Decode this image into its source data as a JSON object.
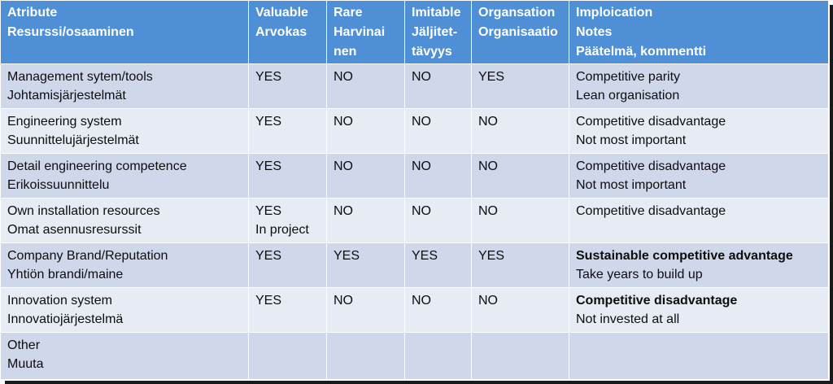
{
  "header": {
    "attribute": [
      "Atribute",
      "Resurssi/osaaminen"
    ],
    "valuable": [
      "Valuable",
      "Arvokas"
    ],
    "rare": [
      "Rare",
      "Harvinai",
      "nen"
    ],
    "imitable": [
      "Imitable",
      "Jäljitet-",
      "tävyys"
    ],
    "organisation": [
      "Organsation",
      "Organisaatio"
    ],
    "implication": [
      "Imploication",
      "Notes",
      "Päätelmä, kommentti"
    ]
  },
  "rows": [
    {
      "attribute": [
        "Management sytem/tools",
        "Johtamisjärjestelmät"
      ],
      "valuable": [
        "YES"
      ],
      "rare": "NO",
      "imitable": "NO",
      "organisation": "YES",
      "notes": [
        "Competitive  parity",
        "Lean organisation"
      ],
      "notes_bold_first": false
    },
    {
      "attribute": [
        "Engineering system",
        "Suunnittelujärjestelmät"
      ],
      "valuable": [
        "YES"
      ],
      "rare": "NO",
      "imitable": "NO",
      "organisation": "NO",
      "notes": [
        "Competitive disadvantage",
        "Not most important"
      ],
      "notes_bold_first": false
    },
    {
      "attribute": [
        "Detail engineering competence",
        "Erikoissuunnittelu"
      ],
      "valuable": [
        "YES"
      ],
      "rare": "NO",
      "imitable": "NO",
      "organisation": "NO",
      "notes": [
        "Competitive disadvantage",
        "Not most important"
      ],
      "notes_bold_first": false
    },
    {
      "attribute": [
        "Own installation resources",
        "Omat asennusresurssit"
      ],
      "valuable": [
        "YES",
        "In project"
      ],
      "rare": "NO",
      "imitable": "NO",
      "organisation": "NO",
      "notes": [
        "Competitive disadvantage",
        ""
      ],
      "notes_bold_first": false
    },
    {
      "attribute": [
        "Company Brand/Reputation",
        "Yhtiön brandi/maine"
      ],
      "valuable": [
        "YES"
      ],
      "rare": "YES",
      "imitable": "YES",
      "organisation": "YES",
      "notes": [
        "Sustainable competitive advantage",
        "Take years to build up"
      ],
      "notes_bold_first": true
    },
    {
      "attribute": [
        "Innovation system",
        "Innovatiojärjestelmä"
      ],
      "valuable": [
        "YES"
      ],
      "rare": "NO",
      "imitable": "NO",
      "organisation": "NO",
      "notes": [
        "Competitive disadvantage",
        "Not invested at all"
      ],
      "notes_bold_first": true
    },
    {
      "attribute": [
        "Other",
        "Muuta"
      ],
      "valuable": [
        ""
      ],
      "rare": "",
      "imitable": "",
      "organisation": "",
      "notes": [
        "",
        ""
      ],
      "notes_bold_first": false
    }
  ]
}
